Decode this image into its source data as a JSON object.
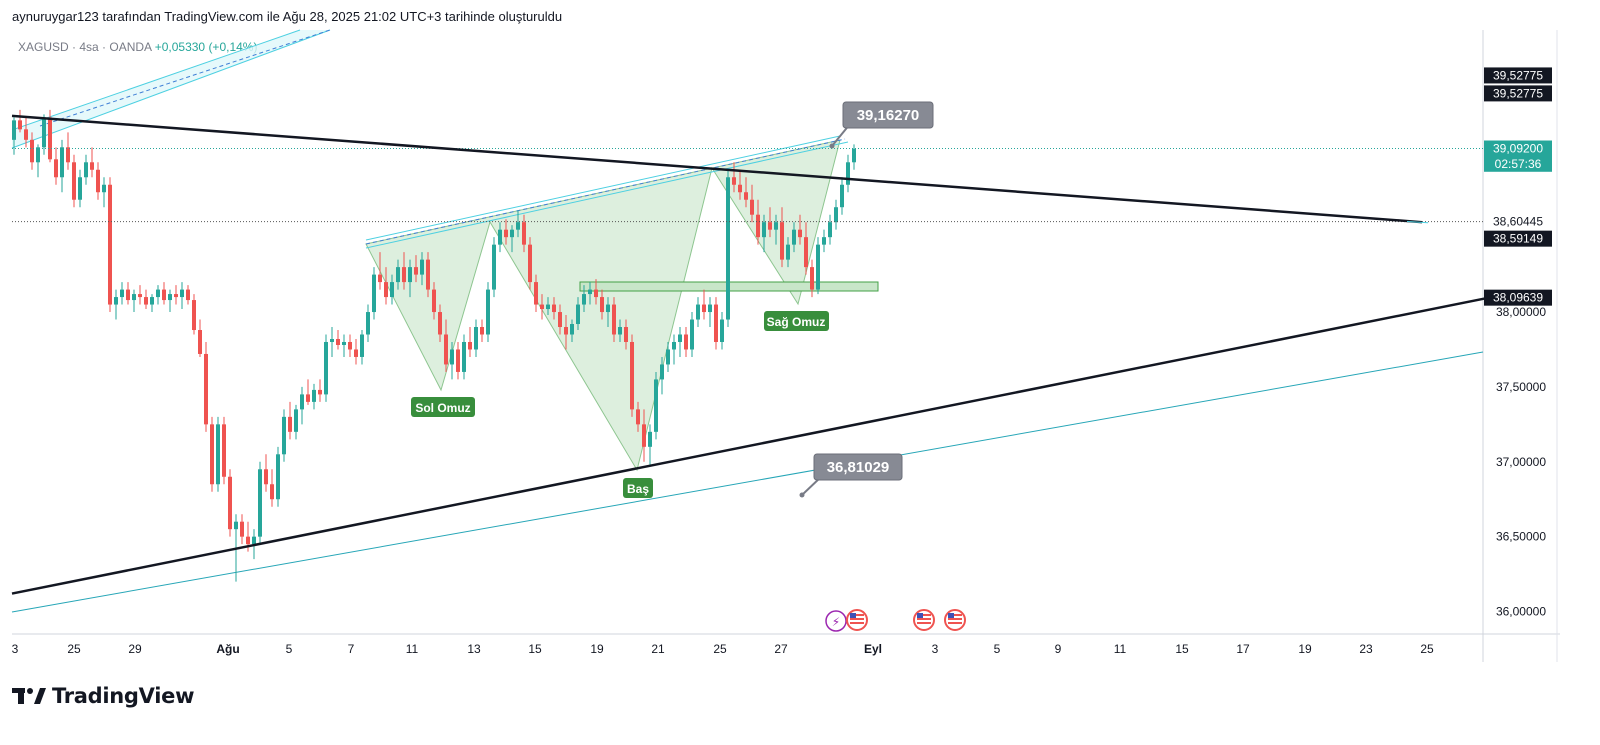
{
  "header": {
    "attribution": "aynuruygar123 tarafından TradingView.com ile Ağu 28, 2025 21:02 UTC+3 tarihinde oluşturuldu"
  },
  "symbol": {
    "name": "XAGUSD · 4sa · OANDA",
    "change": "+0,05330 (+0,14%)"
  },
  "branding": {
    "logo_text": "TradingView",
    "icon": "tradingview-logo-icon"
  },
  "colors": {
    "up": "#26a69a",
    "down": "#ef5350",
    "pattern_fill": "#c8e6c9",
    "pattern_line": "#43a047",
    "channel": "#4dd0e1",
    "label_green": "#388e3c",
    "callout": "#787b86"
  },
  "chart_data": {
    "type": "candlestick",
    "instrument": "XAGUSD",
    "interval": "4sa",
    "ylim": [
      35.85,
      39.85
    ],
    "x_ticks": [
      "3",
      "25",
      "29",
      "Ağu",
      "5",
      "7",
      "11",
      "13",
      "15",
      "19",
      "21",
      "25",
      "27",
      "Eyl",
      "3",
      "5",
      "9",
      "11",
      "15",
      "17",
      "19",
      "23",
      "25"
    ],
    "y_ticks": [
      "36,00000",
      "36,50000",
      "37,00000",
      "37,50000",
      "38,00000"
    ],
    "price_labels": [
      {
        "text": "39,52775",
        "value": 39.58,
        "style": "dark"
      },
      {
        "text": "39,52775",
        "value": 39.46,
        "style": "dark"
      },
      {
        "text": "39,09200",
        "value": 39.092,
        "style": "green"
      },
      {
        "text": "02:57:36",
        "value": 38.99,
        "style": "green"
      },
      {
        "text": "38,60445",
        "value": 38.604,
        "style": "plain"
      },
      {
        "text": "38,59149",
        "value": 38.49,
        "style": "dark"
      },
      {
        "text": "38,09639",
        "value": 38.096,
        "style": "dark"
      }
    ],
    "annotations": [
      {
        "text": "39,16270",
        "type": "callout",
        "value": 39.1627
      },
      {
        "text": "36,81029",
        "type": "callout",
        "value": 36.81029
      },
      {
        "text": "Sol Omuz",
        "type": "pattern-label"
      },
      {
        "text": "Baş",
        "type": "pattern-label"
      },
      {
        "text": "Sağ Omuz",
        "type": "pattern-label"
      }
    ],
    "pattern": "Ters Omuz-Baş-Omuz",
    "trendlines": [
      {
        "name": "üst trend",
        "from": [
          0,
          39.31
        ],
        "to": [
          1410,
          38.6
        ]
      },
      {
        "name": "alt trend",
        "from": [
          0,
          36.12
        ],
        "to": [
          1480,
          38.1
        ]
      }
    ],
    "hlines": [
      39.092,
      38.604
    ],
    "candles": [
      [
        0,
        39.15,
        39.3,
        39.05,
        39.28
      ],
      [
        6,
        39.28,
        39.35,
        39.2,
        39.22
      ],
      [
        12,
        39.22,
        39.3,
        39.1,
        39.15
      ],
      [
        18,
        39.15,
        39.2,
        38.95,
        39.0
      ],
      [
        24,
        39.0,
        39.12,
        38.9,
        39.1
      ],
      [
        30,
        39.1,
        39.32,
        39.05,
        39.3
      ],
      [
        36,
        39.3,
        39.35,
        39.0,
        39.02
      ],
      [
        42,
        39.02,
        39.1,
        38.85,
        38.9
      ],
      [
        48,
        38.9,
        39.15,
        38.8,
        39.1
      ],
      [
        54,
        39.1,
        39.2,
        38.95,
        39.0
      ],
      [
        60,
        39.0,
        39.05,
        38.7,
        38.75
      ],
      [
        66,
        38.75,
        38.95,
        38.7,
        38.9
      ],
      [
        72,
        38.9,
        39.05,
        38.85,
        39.0
      ],
      [
        78,
        39.0,
        39.1,
        38.9,
        38.95
      ],
      [
        84,
        38.95,
        39.0,
        38.75,
        38.8
      ],
      [
        90,
        38.8,
        38.9,
        38.7,
        38.85
      ],
      [
        96,
        38.85,
        38.9,
        38.0,
        38.05
      ],
      [
        102,
        38.05,
        38.15,
        37.95,
        38.1
      ],
      [
        108,
        38.1,
        38.2,
        38.05,
        38.15
      ],
      [
        114,
        38.15,
        38.2,
        38.05,
        38.08
      ],
      [
        120,
        38.08,
        38.15,
        38.0,
        38.12
      ],
      [
        126,
        38.12,
        38.18,
        38.05,
        38.1
      ],
      [
        132,
        38.1,
        38.15,
        38.02,
        38.05
      ],
      [
        138,
        38.05,
        38.12,
        38.0,
        38.1
      ],
      [
        144,
        38.1,
        38.18,
        38.05,
        38.15
      ],
      [
        150,
        38.15,
        38.2,
        38.05,
        38.08
      ],
      [
        156,
        38.08,
        38.15,
        38.0,
        38.12
      ],
      [
        162,
        38.12,
        38.18,
        38.05,
        38.1
      ],
      [
        168,
        38.1,
        38.2,
        38.02,
        38.15
      ],
      [
        174,
        38.15,
        38.18,
        38.05,
        38.08
      ],
      [
        180,
        38.08,
        38.12,
        37.85,
        37.88
      ],
      [
        186,
        37.88,
        37.95,
        37.7,
        37.72
      ],
      [
        192,
        37.72,
        37.8,
        37.2,
        37.25
      ],
      [
        198,
        37.25,
        37.3,
        36.8,
        36.85
      ],
      [
        204,
        36.85,
        37.3,
        36.8,
        37.25
      ],
      [
        210,
        37.25,
        37.3,
        36.85,
        36.9
      ],
      [
        216,
        36.9,
        36.95,
        36.5,
        36.55
      ],
      [
        222,
        36.55,
        36.65,
        36.2,
        36.6
      ],
      [
        228,
        36.6,
        36.65,
        36.45,
        36.5
      ],
      [
        234,
        36.5,
        36.6,
        36.4,
        36.45
      ],
      [
        240,
        36.45,
        36.55,
        36.35,
        36.5
      ],
      [
        246,
        36.5,
        37.0,
        36.45,
        36.95
      ],
      [
        252,
        36.95,
        37.05,
        36.8,
        36.85
      ],
      [
        258,
        36.85,
        36.95,
        36.7,
        36.75
      ],
      [
        264,
        36.75,
        37.1,
        36.7,
        37.05
      ],
      [
        270,
        37.05,
        37.35,
        37.0,
        37.3
      ],
      [
        276,
        37.3,
        37.4,
        37.15,
        37.2
      ],
      [
        282,
        37.2,
        37.38,
        37.15,
        37.35
      ],
      [
        288,
        37.35,
        37.5,
        37.25,
        37.45
      ],
      [
        294,
        37.45,
        37.55,
        37.38,
        37.4
      ],
      [
        300,
        37.4,
        37.52,
        37.35,
        37.48
      ],
      [
        306,
        37.48,
        37.55,
        37.4,
        37.45
      ],
      [
        312,
        37.45,
        37.85,
        37.4,
        37.8
      ],
      [
        318,
        37.8,
        37.9,
        37.7,
        37.82
      ],
      [
        324,
        37.82,
        37.88,
        37.75,
        37.78
      ],
      [
        330,
        37.78,
        37.85,
        37.7,
        37.8
      ],
      [
        336,
        37.8,
        37.85,
        37.7,
        37.75
      ],
      [
        342,
        37.75,
        37.82,
        37.65,
        37.7
      ],
      [
        348,
        37.7,
        37.88,
        37.65,
        37.85
      ],
      [
        354,
        37.85,
        38.05,
        37.8,
        38.0
      ],
      [
        360,
        38.0,
        38.3,
        37.95,
        38.25
      ],
      [
        366,
        38.25,
        38.4,
        38.15,
        38.2
      ],
      [
        372,
        38.2,
        38.3,
        38.05,
        38.1
      ],
      [
        378,
        38.1,
        38.25,
        38.05,
        38.2
      ],
      [
        384,
        38.2,
        38.35,
        38.15,
        38.3
      ],
      [
        390,
        38.3,
        38.4,
        38.15,
        38.2
      ],
      [
        396,
        38.2,
        38.35,
        38.1,
        38.3
      ],
      [
        402,
        38.3,
        38.38,
        38.2,
        38.25
      ],
      [
        408,
        38.25,
        38.4,
        38.18,
        38.35
      ],
      [
        414,
        38.35,
        38.4,
        38.1,
        38.15
      ],
      [
        420,
        38.15,
        38.2,
        37.95,
        38.0
      ],
      [
        426,
        38.0,
        38.05,
        37.8,
        37.85
      ],
      [
        432,
        37.85,
        37.95,
        37.6,
        37.65
      ],
      [
        438,
        37.65,
        37.8,
        37.55,
        37.75
      ],
      [
        444,
        37.75,
        37.8,
        37.55,
        37.6
      ],
      [
        450,
        37.6,
        37.85,
        37.55,
        37.8
      ],
      [
        456,
        37.8,
        37.9,
        37.7,
        37.75
      ],
      [
        462,
        37.75,
        37.95,
        37.7,
        37.9
      ],
      [
        468,
        37.9,
        37.95,
        37.8,
        37.85
      ],
      [
        474,
        37.85,
        38.2,
        37.8,
        38.15
      ],
      [
        480,
        38.15,
        38.5,
        38.1,
        38.45
      ],
      [
        486,
        38.45,
        38.6,
        38.4,
        38.55
      ],
      [
        492,
        38.55,
        38.62,
        38.45,
        38.5
      ],
      [
        498,
        38.5,
        38.58,
        38.4,
        38.55
      ],
      [
        504,
        38.55,
        38.68,
        38.5,
        38.6
      ],
      [
        510,
        38.6,
        38.65,
        38.4,
        38.45
      ],
      [
        516,
        38.45,
        38.5,
        38.15,
        38.2
      ],
      [
        522,
        38.2,
        38.25,
        38.0,
        38.05
      ],
      [
        528,
        38.05,
        38.12,
        37.95,
        38.02
      ],
      [
        534,
        38.02,
        38.1,
        37.98,
        38.05
      ],
      [
        540,
        38.05,
        38.1,
        37.95,
        38.0
      ],
      [
        546,
        38.0,
        38.05,
        37.85,
        37.9
      ],
      [
        552,
        37.9,
        37.98,
        37.75,
        37.85
      ],
      [
        558,
        37.85,
        37.95,
        37.8,
        37.92
      ],
      [
        564,
        37.92,
        38.1,
        37.88,
        38.05
      ],
      [
        570,
        38.05,
        38.18,
        38.0,
        38.12
      ],
      [
        576,
        38.12,
        38.2,
        38.05,
        38.15
      ],
      [
        582,
        38.15,
        38.22,
        38.05,
        38.1
      ],
      [
        588,
        38.1,
        38.15,
        37.95,
        38.0
      ],
      [
        594,
        38.0,
        38.1,
        37.9,
        38.05
      ],
      [
        600,
        38.05,
        38.1,
        37.8,
        37.85
      ],
      [
        606,
        37.85,
        37.95,
        37.8,
        37.9
      ],
      [
        612,
        37.9,
        37.95,
        37.75,
        37.8
      ],
      [
        618,
        37.8,
        37.85,
        37.3,
        37.35
      ],
      [
        624,
        37.35,
        37.4,
        37.2,
        37.25
      ],
      [
        630,
        37.25,
        37.35,
        37.0,
        37.1
      ],
      [
        636,
        37.1,
        37.25,
        36.98,
        37.2
      ],
      [
        642,
        37.2,
        37.6,
        37.15,
        37.55
      ],
      [
        648,
        37.55,
        37.7,
        37.45,
        37.65
      ],
      [
        654,
        37.65,
        37.8,
        37.6,
        37.75
      ],
      [
        660,
        37.75,
        37.85,
        37.65,
        37.8
      ],
      [
        666,
        37.8,
        37.9,
        37.7,
        37.85
      ],
      [
        672,
        37.85,
        37.9,
        37.7,
        37.75
      ],
      [
        678,
        37.75,
        38.0,
        37.7,
        37.95
      ],
      [
        684,
        37.95,
        38.1,
        37.9,
        38.05
      ],
      [
        690,
        38.05,
        38.15,
        37.95,
        38.0
      ],
      [
        696,
        38.0,
        38.1,
        37.9,
        38.05
      ],
      [
        702,
        38.05,
        38.1,
        37.75,
        37.8
      ],
      [
        708,
        37.8,
        38.0,
        37.75,
        37.95
      ],
      [
        714,
        37.95,
        38.95,
        37.9,
        38.9
      ],
      [
        720,
        38.9,
        39.0,
        38.8,
        38.85
      ],
      [
        726,
        38.85,
        38.95,
        38.75,
        38.8
      ],
      [
        732,
        38.8,
        38.9,
        38.7,
        38.75
      ],
      [
        738,
        38.75,
        38.85,
        38.6,
        38.65
      ],
      [
        744,
        38.65,
        38.75,
        38.45,
        38.5
      ],
      [
        750,
        38.5,
        38.65,
        38.4,
        38.6
      ],
      [
        756,
        38.6,
        38.7,
        38.5,
        38.55
      ],
      [
        762,
        38.55,
        38.65,
        38.45,
        38.6
      ],
      [
        768,
        38.6,
        38.7,
        38.3,
        38.35
      ],
      [
        774,
        38.35,
        38.5,
        38.3,
        38.45
      ],
      [
        780,
        38.45,
        38.6,
        38.4,
        38.55
      ],
      [
        786,
        38.55,
        38.65,
        38.45,
        38.5
      ],
      [
        792,
        38.5,
        38.6,
        38.25,
        38.3
      ],
      [
        798,
        38.3,
        38.35,
        38.1,
        38.15
      ],
      [
        804,
        38.15,
        38.5,
        38.12,
        38.45
      ],
      [
        810,
        38.45,
        38.55,
        38.4,
        38.5
      ],
      [
        816,
        38.5,
        38.65,
        38.45,
        38.6
      ],
      [
        822,
        38.6,
        38.75,
        38.55,
        38.7
      ],
      [
        828,
        38.7,
        38.9,
        38.65,
        38.85
      ],
      [
        834,
        38.85,
        39.05,
        38.8,
        39.0
      ],
      [
        840,
        39.0,
        39.12,
        38.95,
        39.09
      ]
    ]
  }
}
